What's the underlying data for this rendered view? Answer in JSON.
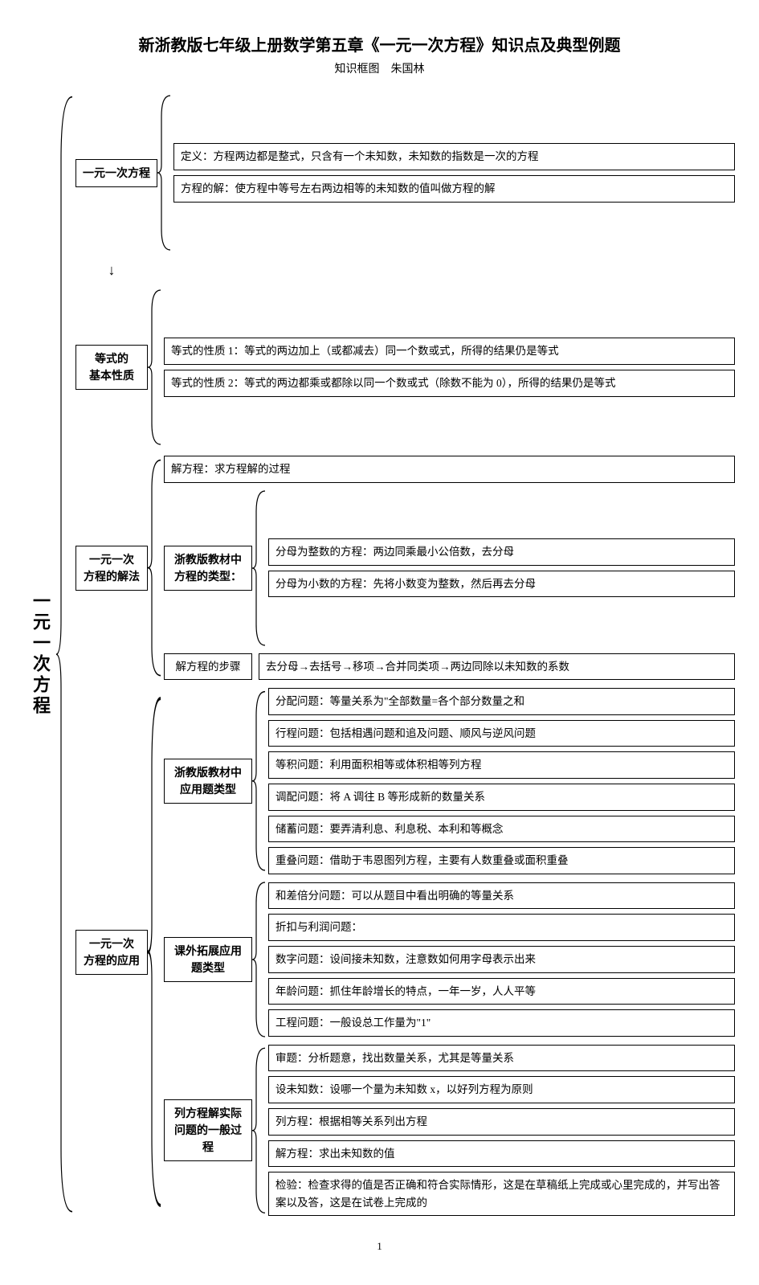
{
  "title": "新浙教版七年级上册数学第五章《一元一次方程》知识点及典型例题",
  "subtitle_left": "知识框图",
  "subtitle_right": "朱国林",
  "root": "一元一次方程",
  "page_number": "1",
  "colors": {
    "text": "#000000",
    "border": "#000000",
    "background": "#ffffff"
  },
  "fonts": {
    "title_size": 20,
    "node_size": 14,
    "leaf_size": 13.5
  },
  "level1": [
    {
      "label": "一元一次方程",
      "leaves": [
        "定义：方程两边都是整式，只含有一个未知数，未知数的指数是一次的方程",
        "方程的解：使方程中等号左右两边相等的未知数的值叫做方程的解"
      ]
    },
    {
      "label": "等式的\n基本性质",
      "arrow_from_above": true,
      "leaves": [
        "等式的性质 1：等式的两边加上（或都减去）同一个数或式，所得的结果仍是等式",
        "等式的性质 2：等式的两边都乘或都除以同一个数或式（除数不能为 0），所得的结果仍是等式"
      ]
    },
    {
      "label": "一元一次\n方程的解法",
      "children": [
        {
          "type": "leaf",
          "text": "解方程：求方程解的过程"
        },
        {
          "type": "sub",
          "label": "浙教版教材中\n方程的类型：",
          "leaves": [
            "分母为整数的方程：两边同乘最小公倍数，去分母",
            "分母为小数的方程：先将小数变为整数，然后再去分母"
          ]
        },
        {
          "type": "pair",
          "left": "解方程的步骤",
          "right": "去分母→去括号→移项→合并同类项→两边同除以未知数的系数"
        }
      ]
    },
    {
      "label": "一元一次\n方程的应用",
      "children": [
        {
          "type": "sub",
          "label": "浙教版教材中\n应用题类型",
          "leaves": [
            "分配问题：等量关系为\"全部数量=各个部分数量之和",
            "行程问题：包括相遇问题和追及问题、顺风与逆风问题",
            "等积问题：利用面积相等或体积相等列方程",
            "调配问题：将 A 调往 B 等形成新的数量关系",
            "储蓄问题：要弄清利息、利息税、本利和等概念",
            "重叠问题：借助于韦恩图列方程，主要有人数重叠或面积重叠"
          ]
        },
        {
          "type": "sub",
          "label": "课外拓展应用\n题类型",
          "leaves": [
            "和差倍分问题：可以从题目中看出明确的等量关系",
            "折扣与利润问题：",
            "数字问题：设间接未知数，注意数如何用字母表示出来",
            "年龄问题：抓住年龄增长的特点，一年一岁，人人平等",
            "工程问题：一般设总工作量为\"1\""
          ]
        },
        {
          "type": "sub",
          "label": "列方程解实际\n问题的一般过\n程",
          "leaves": [
            "审题：分析题意，找出数量关系，尤其是等量关系",
            "设未知数：设哪一个量为未知数 x，以好列方程为原则",
            "列方程：根据相等关系列出方程",
            "解方程：求出未知数的值",
            "检验：检查求得的值是否正确和符合实际情形，这是在草稿纸上完成或心里完成的，并写出答案以及答，这是在试卷上完成的"
          ]
        }
      ]
    }
  ]
}
